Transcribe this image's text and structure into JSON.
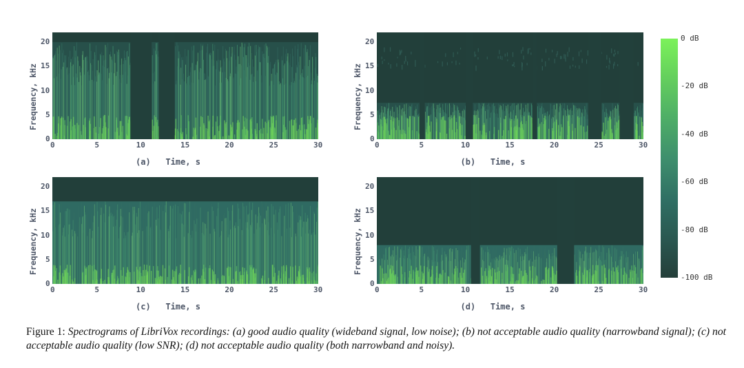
{
  "figure": {
    "caption_label": "Figure 1:",
    "caption_text": "Spectrograms of LibriVox recordings: (a) good audio quality (wideband signal, low noise); (b) not acceptable audio quality (narrowband signal); (c) not acceptable audio quality (low SNR); (d) not acceptable audio quality (both narrowband and noisy)."
  },
  "axes": {
    "ylabel": "Frequency, kHz",
    "xlabel": "Time, s",
    "y_ticks": [
      "20",
      "15",
      "10",
      "5",
      "0"
    ],
    "x_ticks": [
      "0",
      "5",
      "10",
      "15",
      "20",
      "25",
      "30"
    ]
  },
  "colorbar": {
    "labels": [
      "0 dB",
      "-20 dB",
      "-40 dB",
      "-60 dB",
      "-80 dB",
      "-100 dB"
    ],
    "colors": [
      "#7cf25a",
      "#4fb066",
      "#3e8f6d",
      "#2f6e63",
      "#243f3a"
    ]
  },
  "panels": [
    {
      "id": "a",
      "label": "(a)",
      "bandwidth_khz": 20,
      "noise": "low",
      "gaps_s": [
        [
          8.8,
          11.2
        ],
        [
          12.0,
          13.8
        ]
      ]
    },
    {
      "id": "b",
      "label": "(b)",
      "bandwidth_khz": 7.5,
      "noise": "low",
      "gaps_s": [
        [
          4.8,
          5.4
        ],
        [
          10.0,
          10.8
        ],
        [
          17.5,
          18.0
        ],
        [
          23.8,
          25.3
        ],
        [
          27.3,
          28.9
        ]
      ]
    },
    {
      "id": "c",
      "label": "(c)",
      "bandwidth_khz": 17,
      "noise": "high",
      "gaps_s": []
    },
    {
      "id": "d",
      "label": "(d)",
      "bandwidth_khz": 8,
      "noise": "high",
      "gaps_s": [
        [
          10.6,
          11.6
        ],
        [
          20.3,
          22.2
        ]
      ]
    }
  ]
}
